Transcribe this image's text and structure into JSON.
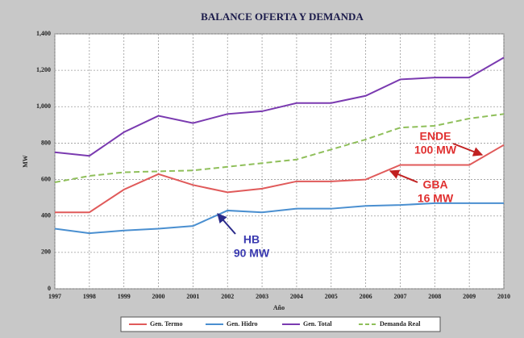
{
  "chart_data": {
    "type": "line",
    "title": "BALANCE OFERTA Y DEMANDA",
    "xlabel": "Año",
    "ylabel": "MW",
    "x": [
      1997,
      1998,
      1999,
      2000,
      2001,
      2002,
      2003,
      2004,
      2005,
      2006,
      2007,
      2008,
      2009,
      2010
    ],
    "xlim": [
      1997,
      2010
    ],
    "xticks": [
      1997,
      1998,
      1999,
      2000,
      2001,
      2002,
      2003,
      2004,
      2005,
      2006,
      2007,
      2008,
      2009,
      2010
    ],
    "ylim": [
      0,
      1400
    ],
    "yticks": [
      0,
      200,
      400,
      600,
      800,
      {
        "value": 1000,
        "label": "1,000"
      },
      {
        "value": 1200,
        "label": "1,200"
      },
      {
        "value": 1400,
        "label": "1,400"
      }
    ],
    "grid": true,
    "legend": "bottom",
    "series": [
      {
        "name": "Gen. Termo",
        "color": "#e05a5a",
        "dash": false,
        "values": [
          420,
          420,
          545,
          630,
          570,
          530,
          550,
          590,
          590,
          600,
          680,
          680,
          680,
          790
        ]
      },
      {
        "name": "Gen. Hidro",
        "color": "#4a8fd0",
        "dash": false,
        "values": [
          330,
          305,
          320,
          330,
          345,
          430,
          420,
          440,
          440,
          455,
          460,
          470,
          470,
          470
        ]
      },
      {
        "name": "Gen. Total",
        "color": "#7a3ab0",
        "dash": false,
        "values": [
          750,
          730,
          860,
          950,
          910,
          960,
          975,
          1020,
          1020,
          1060,
          1150,
          1160,
          1160,
          1270
        ]
      },
      {
        "name": "Demanda Real",
        "color": "#8fbf5a",
        "dash": true,
        "values": [
          585,
          620,
          640,
          645,
          650,
          670,
          690,
          710,
          765,
          820,
          885,
          895,
          935,
          960
        ]
      }
    ],
    "annotations": [
      {
        "lines": [
          "ENDE",
          "100 MW"
        ],
        "color": "#e03030"
      },
      {
        "lines": [
          "GBA",
          "16 MW"
        ],
        "color": "#e03030"
      },
      {
        "lines": [
          "HB",
          "90 MW"
        ],
        "color": "#3a3ab0"
      }
    ]
  }
}
